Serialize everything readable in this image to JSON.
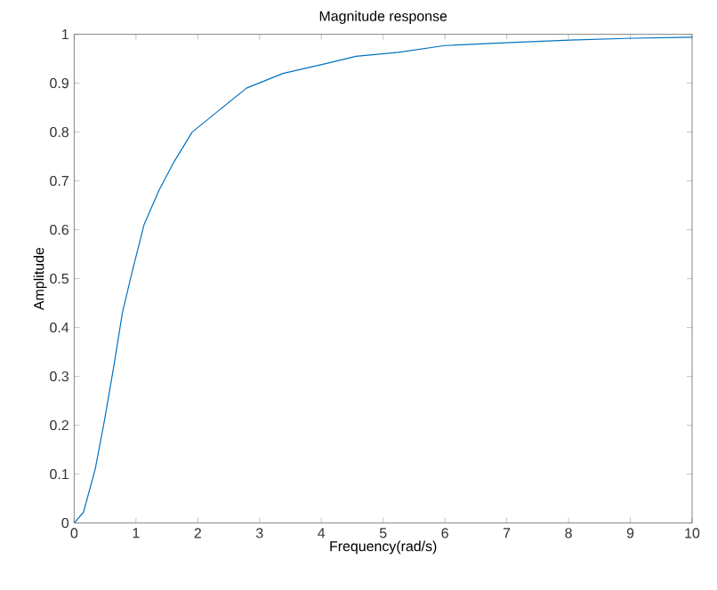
{
  "chart_data": {
    "type": "line",
    "title": "Magnitude response",
    "xlabel": "Frequency(rad/s)",
    "ylabel": "Amplitude",
    "x": [
      0,
      0.15,
      0.34,
      0.49,
      0.64,
      0.78,
      0.93,
      1.13,
      1.37,
      1.62,
      1.91,
      2.3,
      2.79,
      3.38,
      4.07,
      4.56,
      5.25,
      6.0,
      7.06,
      8.02,
      9.03,
      10
    ],
    "series": [
      {
        "color": "#0072bd",
        "values": [
          0,
          0.022,
          0.11,
          0.21,
          0.32,
          0.43,
          0.51,
          0.61,
          0.68,
          0.74,
          0.8,
          0.84,
          0.89,
          0.92,
          0.94,
          0.955,
          0.963,
          0.977,
          0.983,
          0.988,
          0.992,
          0.994
        ]
      }
    ],
    "xlim": [
      0,
      10
    ],
    "ylim": [
      0,
      1
    ],
    "xticks": [
      0,
      1,
      2,
      3,
      4,
      5,
      6,
      7,
      8,
      9,
      10
    ],
    "yticks": [
      0,
      0.1,
      0.2,
      0.3,
      0.4,
      0.5,
      0.6,
      0.7,
      0.8,
      0.9,
      1
    ],
    "marker": "none",
    "line_style": "solid"
  }
}
